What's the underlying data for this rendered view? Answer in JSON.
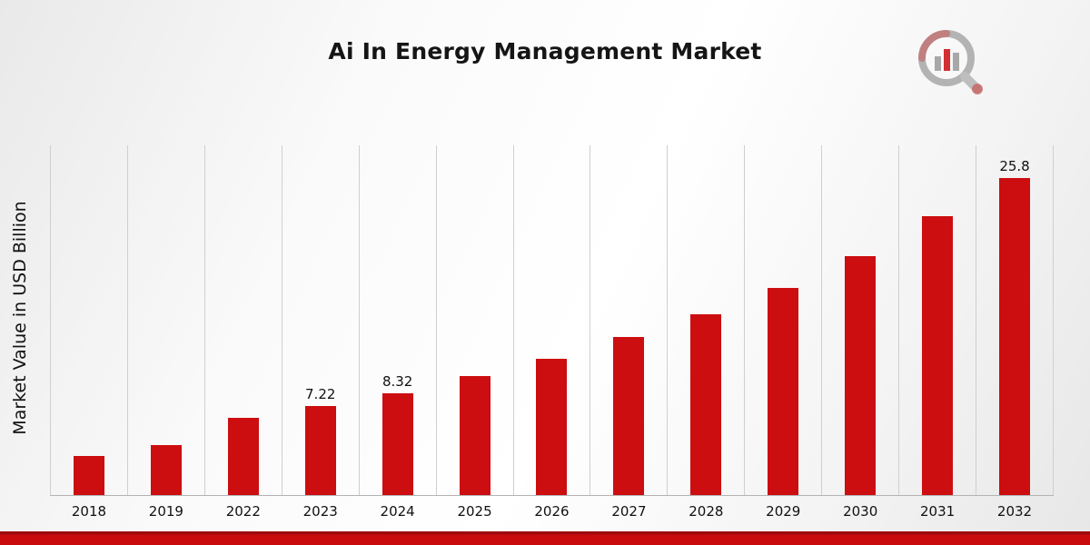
{
  "chart_data": {
    "type": "bar",
    "title": "Ai In Energy Management Market",
    "xlabel": "",
    "ylabel": "Market Value in USD Billion",
    "categories": [
      "2018",
      "2019",
      "2022",
      "2023",
      "2024",
      "2025",
      "2026",
      "2027",
      "2028",
      "2029",
      "2030",
      "2031",
      "2032"
    ],
    "values": [
      3.2,
      4.1,
      6.3,
      7.22,
      8.32,
      9.7,
      11.1,
      12.9,
      14.7,
      16.9,
      19.5,
      22.7,
      25.8
    ],
    "data_labels": {
      "2023": "7.22",
      "2024": "8.32",
      "2032": "25.8"
    },
    "ylim": [
      0,
      28.5
    ],
    "grid": "vertical",
    "legend_position": "none",
    "bar_color": "#cc0e10",
    "gridline_color": "#cfcfcf"
  },
  "branding": {
    "logo_name": "market-research-magnifier-chart-logo",
    "accent_color": "#cc0e10",
    "footer_stripe_color": "#c90b0d"
  }
}
